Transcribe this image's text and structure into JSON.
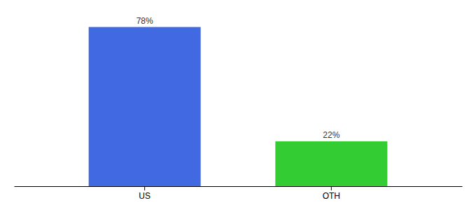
{
  "chart_data": {
    "type": "bar",
    "categories": [
      "US",
      "OTH"
    ],
    "values": [
      78,
      22
    ],
    "value_labels": [
      "78%",
      "22%"
    ],
    "colors": [
      "#4169e1",
      "#33cc33"
    ],
    "ylim": [
      0,
      83
    ],
    "data_labels": true,
    "tick_labels": "x"
  }
}
